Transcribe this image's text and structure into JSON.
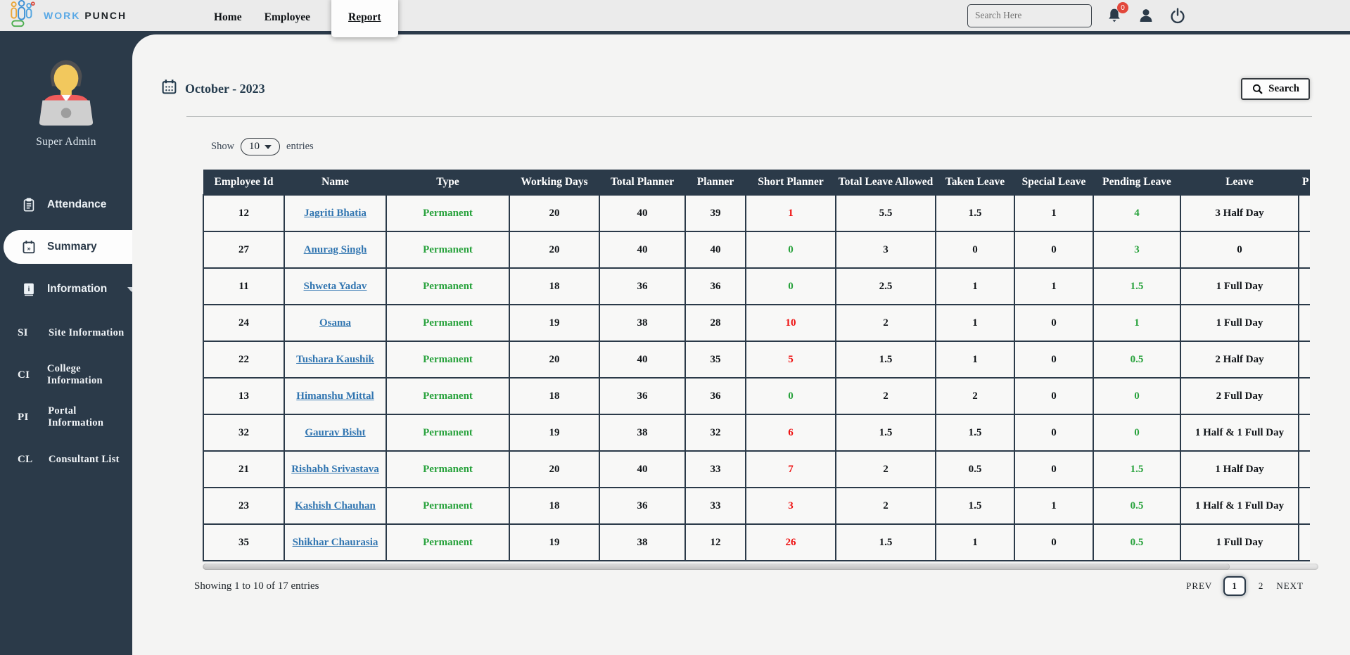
{
  "colors": {
    "navy": "#2b3a49",
    "page-bg": "#f4f4f3",
    "navbar-bg": "#ebebeb",
    "row-bg": "#f8f8f7",
    "link-blue": "#3276b1",
    "green": "#28a23c",
    "red": "#ee1010",
    "badge-red": "#e2473b",
    "brand-blue": "#5aa9e6"
  },
  "navbar": {
    "brand": {
      "part1": "WORK",
      "part2": "PUNCH"
    },
    "links": [
      {
        "label": "Home",
        "active": false
      },
      {
        "label": "Employee",
        "active": false
      },
      {
        "label": "Report",
        "active": true
      }
    ],
    "search_placeholder": "Search Here",
    "notification_count": "0",
    "icons": [
      "bell-icon",
      "user-icon",
      "power-icon"
    ]
  },
  "sidebar": {
    "user_role": "Super Admin",
    "items": [
      {
        "label": "Attendance",
        "icon": "clipboard-icon",
        "active": false
      },
      {
        "label": "Summary",
        "icon": "summary-calendar-icon",
        "active": true
      },
      {
        "label": "Information",
        "icon": "info-icon",
        "active": false,
        "has_caret": true
      }
    ],
    "sub_items": [
      {
        "abbr": "SI",
        "label": "Site Information"
      },
      {
        "abbr": "CI",
        "label": "College Information"
      },
      {
        "abbr": "PI",
        "label": "Portal Information"
      },
      {
        "abbr": "CL",
        "label": "Consultant List"
      }
    ]
  },
  "main": {
    "period_title": "October - 2023",
    "search_button_label": "Search",
    "controls": {
      "show_label": "Show",
      "page_size": "10",
      "entries_label": "entries"
    },
    "table": {
      "columns": [
        {
          "key": "id",
          "label": "Employee Id",
          "style": "plain"
        },
        {
          "key": "name",
          "label": "Name",
          "style": "link"
        },
        {
          "key": "type",
          "label": "Type",
          "style": "green"
        },
        {
          "key": "working_days",
          "label": "Working Days",
          "style": "plain"
        },
        {
          "key": "total_planner",
          "label": "Total Planner",
          "style": "plain"
        },
        {
          "key": "planner",
          "label": "Planner",
          "style": "plain"
        },
        {
          "key": "short_planner",
          "label": "Short Planner",
          "style": "shortfall"
        },
        {
          "key": "total_leave_allowed",
          "label": "Total Leave Allowed",
          "style": "plain"
        },
        {
          "key": "taken_leave",
          "label": "Taken Leave",
          "style": "plain"
        },
        {
          "key": "special_leave",
          "label": "Special Leave",
          "style": "plain"
        },
        {
          "key": "pending_leave",
          "label": "Pending Leave",
          "style": "green"
        },
        {
          "key": "leave",
          "label": "Leave",
          "style": "plain"
        },
        {
          "key": "p_truncated",
          "label": "P",
          "style": "plain",
          "truncated": true
        }
      ],
      "rows": [
        {
          "id": "12",
          "name": "Jagriti Bhatia",
          "type": "Permanent",
          "working_days": "20",
          "total_planner": "40",
          "planner": "39",
          "short_planner": "1",
          "total_leave_allowed": "5.5",
          "taken_leave": "1.5",
          "special_leave": "1",
          "pending_leave": "4",
          "leave": "3 Half Day"
        },
        {
          "id": "27",
          "name": "Anurag Singh",
          "type": "Permanent",
          "working_days": "20",
          "total_planner": "40",
          "planner": "40",
          "short_planner": "0",
          "total_leave_allowed": "3",
          "taken_leave": "0",
          "special_leave": "0",
          "pending_leave": "3",
          "leave": "0"
        },
        {
          "id": "11",
          "name": "Shweta Yadav",
          "type": "Permanent",
          "working_days": "18",
          "total_planner": "36",
          "planner": "36",
          "short_planner": "0",
          "total_leave_allowed": "2.5",
          "taken_leave": "1",
          "special_leave": "1",
          "pending_leave": "1.5",
          "leave": "1 Full Day"
        },
        {
          "id": "24",
          "name": "Osama",
          "type": "Permanent",
          "working_days": "19",
          "total_planner": "38",
          "planner": "28",
          "short_planner": "10",
          "total_leave_allowed": "2",
          "taken_leave": "1",
          "special_leave": "0",
          "pending_leave": "1",
          "leave": "1 Full Day"
        },
        {
          "id": "22",
          "name": "Tushara Kaushik",
          "type": "Permanent",
          "working_days": "20",
          "total_planner": "40",
          "planner": "35",
          "short_planner": "5",
          "total_leave_allowed": "1.5",
          "taken_leave": "1",
          "special_leave": "0",
          "pending_leave": "0.5",
          "leave": "2 Half Day"
        },
        {
          "id": "13",
          "name": "Himanshu Mittal",
          "type": "Permanent",
          "working_days": "18",
          "total_planner": "36",
          "planner": "36",
          "short_planner": "0",
          "total_leave_allowed": "2",
          "taken_leave": "2",
          "special_leave": "0",
          "pending_leave": "0",
          "leave": "2 Full Day"
        },
        {
          "id": "32",
          "name": "Gaurav Bisht",
          "type": "Permanent",
          "working_days": "19",
          "total_planner": "38",
          "planner": "32",
          "short_planner": "6",
          "total_leave_allowed": "1.5",
          "taken_leave": "1.5",
          "special_leave": "0",
          "pending_leave": "0",
          "leave": "1 Half & 1 Full Day"
        },
        {
          "id": "21",
          "name": "Rishabh Srivastava",
          "type": "Permanent",
          "working_days": "20",
          "total_planner": "40",
          "planner": "33",
          "short_planner": "7",
          "total_leave_allowed": "2",
          "taken_leave": "0.5",
          "special_leave": "0",
          "pending_leave": "1.5",
          "leave": "1 Half Day"
        },
        {
          "id": "23",
          "name": "Kashish Chauhan",
          "type": "Permanent",
          "working_days": "18",
          "total_planner": "36",
          "planner": "33",
          "short_planner": "3",
          "total_leave_allowed": "2",
          "taken_leave": "1.5",
          "special_leave": "1",
          "pending_leave": "0.5",
          "leave": "1 Half & 1 Full Day"
        },
        {
          "id": "35",
          "name": "Shikhar Chaurasia",
          "type": "Permanent",
          "working_days": "19",
          "total_planner": "38",
          "planner": "12",
          "short_planner": "26",
          "total_leave_allowed": "1.5",
          "taken_leave": "1",
          "special_leave": "0",
          "pending_leave": "0.5",
          "leave": "1 Full Day"
        }
      ]
    },
    "summary_text": "Showing 1 to 10 of 17 entries",
    "pagination": {
      "prev_label": "PREV",
      "pages": [
        "1",
        "2"
      ],
      "active_page": "1",
      "next_label": "NEXT"
    }
  }
}
